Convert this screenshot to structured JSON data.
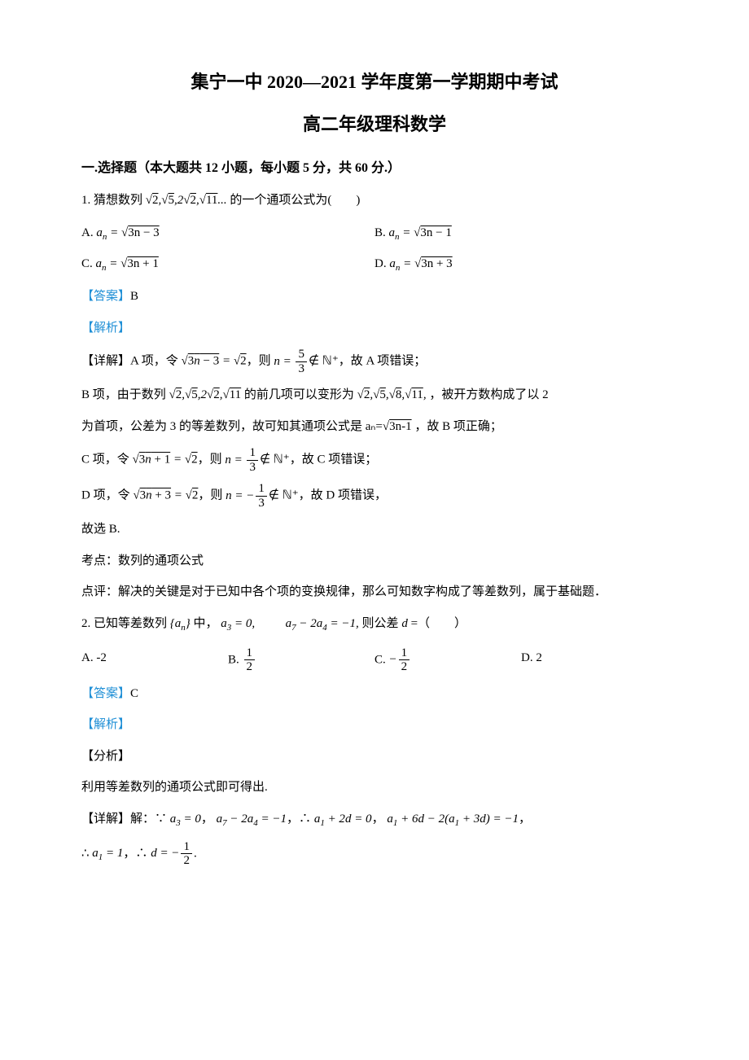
{
  "title_line1": "集宁一中 2020—2021 学年度第一学期期中考试",
  "title_line2": "高二年级理科数学",
  "section_header": "一.选择题（本大题共 12 小题，每小题 5 分，共 60 分.）",
  "q1": {
    "number": "1.",
    "stem_pre": "猜想数列",
    "stem_seq": "√2, √5, 2√2, √11 ...",
    "stem_post": "的一个通项公式为(　　)",
    "optA_label": "A.",
    "optA_math_var": "a",
    "optA_math_sub": "n",
    "optA_math_eq": " = ",
    "optA_math_sqrt": "3n − 3",
    "optB_label": "B.",
    "optB_math_sqrt": "3n − 1",
    "optC_label": "C.",
    "optC_math_sqrt": "3n + 1",
    "optD_label": "D.",
    "optD_math_sqrt": "3n + 3",
    "answer_label": "【答案】",
    "answer": "B",
    "analysis_label": "【解析】",
    "detail_label": "【详解】",
    "detail_A_pre": "A 项，令",
    "detail_A_eq": "√(3n − 3) = √2",
    "detail_A_mid": "，则",
    "detail_A_n": "n = ",
    "detail_A_frac_num": "5",
    "detail_A_frac_den": "3",
    "detail_A_notin": "∉ ℕ⁺",
    "detail_A_post": "，故 A 项错误；",
    "detail_B_pre": "B 项，由于数列",
    "detail_B_seq": "√2, √5, 2√2, √11",
    "detail_B_mid": " 的前几项可以变形为",
    "detail_B_seq2": "√2, √5, √8, √11,",
    "detail_B_post": "，被开方数构成了以 2",
    "detail_B_line2": "为首项，公差为 3 的等差数列，故可知其通项公式是 aₙ=",
    "detail_B_sqrt": "3n-1",
    "detail_B_end": " ，故 B 项正确；",
    "detail_C_pre": "C 项，令",
    "detail_C_eq": "√(3n + 1) = √2",
    "detail_C_mid": "，则",
    "detail_C_n": "n = ",
    "detail_C_frac_num": "1",
    "detail_C_frac_den": "3",
    "detail_C_post": "∉ ℕ⁺，故 C 项错误；",
    "detail_D_pre": "D 项，令",
    "detail_D_eq": "√(3n + 3) = √2",
    "detail_D_mid": "，则",
    "detail_D_n": "n = −",
    "detail_D_frac_num": "1",
    "detail_D_frac_den": "3",
    "detail_D_post": "∉ ℕ⁺，故 D 项错误，",
    "conclude": "故选 B.",
    "topic": "考点：数列的通项公式",
    "comment": "点评：解决的关键是对于已知中各个项的变换规律，那么可知数字构成了等差数列，属于基础题．"
  },
  "q2": {
    "number": "2.",
    "stem_pre": "已知等差数列",
    "stem_set": "{aₙ}",
    "stem_mid1": "中，",
    "stem_a3": "a₃ = 0,",
    "stem_gap": "　　",
    "stem_a7": "a₇ − 2a₄ = −1,",
    "stem_post": " 则公差 d =（　　）",
    "optA_label": "A.",
    "optA_val": "-2",
    "optB_label": "B.",
    "optB_frac_num": "1",
    "optB_frac_den": "2",
    "optC_label": "C.",
    "optC_neg": "−",
    "optC_frac_num": "1",
    "optC_frac_den": "2",
    "optD_label": "D.",
    "optD_val": "2",
    "answer_label": "【答案】",
    "answer": "C",
    "analysis_label": "【解析】",
    "fenxi_label": "【分析】",
    "fenxi_text": "利用等差数列的通项公式即可得出.",
    "detail_label": "【详解】",
    "detail_pre": "解：∵",
    "detail_eq1": "a₃ = 0",
    "detail_c1": "，",
    "detail_eq2": "a₇ − 2a₄ = −1",
    "detail_c2": "，∴",
    "detail_eq3": "a₁ + 2d = 0",
    "detail_c3": "，",
    "detail_eq4": "a₁ + 6d − 2(a₁ + 3d) = −1",
    "detail_c4": "，",
    "detail_line2_pre": "∴",
    "detail_line2_eq1": "a₁ = 1",
    "detail_line2_c1": "，∴",
    "detail_line2_eq2": "d = −",
    "detail_line2_frac_num": "1",
    "detail_line2_frac_den": "2",
    "detail_line2_end": "."
  },
  "colors": {
    "text": "#000000",
    "link": "#1f8fd6",
    "background": "#ffffff"
  }
}
